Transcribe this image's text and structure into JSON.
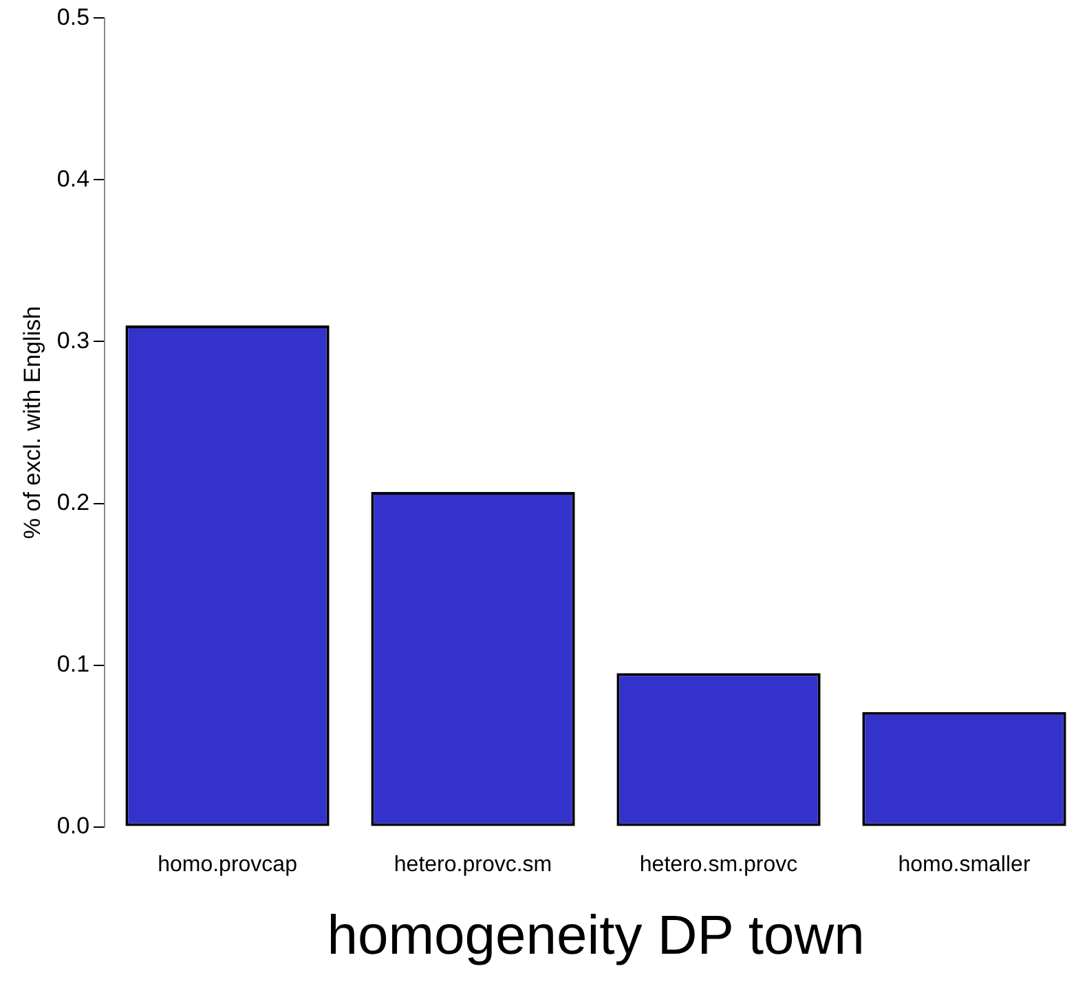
{
  "chart_data": {
    "type": "bar",
    "xlabel": "homogeneity DP town",
    "ylabel": "% of excl. with English",
    "categories": [
      "homo.provcap",
      "hetero.provc.sm",
      "hetero.sm.provc",
      "homo.smaller"
    ],
    "values": [
      0.31,
      0.207,
      0.095,
      0.071
    ],
    "color": "#3333cc",
    "ylim": [
      0,
      0.5
    ],
    "yticks": [
      {
        "value": 0,
        "label": "0.0"
      },
      {
        "value": 0.1,
        "label": "0.1"
      },
      {
        "value": 0.2,
        "label": "0.2"
      },
      {
        "value": 0.3,
        "label": "0.3"
      },
      {
        "value": 0.4,
        "label": "0.4"
      },
      {
        "value": 0.5,
        "label": "0.5"
      }
    ],
    "grid": false,
    "legend": false
  }
}
